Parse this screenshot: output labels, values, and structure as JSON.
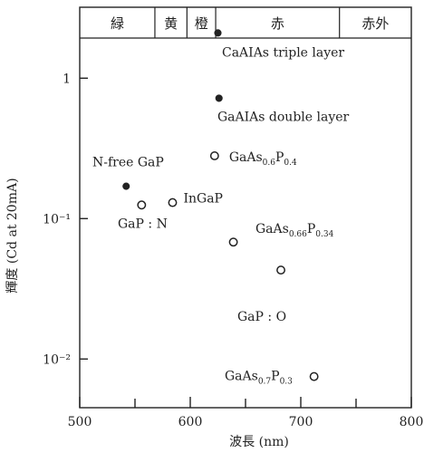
{
  "chart_data": {
    "type": "scatter",
    "title": "",
    "xlabel": "波長 (nm)",
    "ylabel": "輝度 (Cd at 20mA)",
    "x_scale": "linear",
    "y_scale": "log",
    "xlim": [
      500,
      800
    ],
    "ylim": [
      0.0045,
      3.2
    ],
    "x_ticks": [
      {
        "value": 500,
        "label": "500"
      },
      {
        "value": 600,
        "label": "600"
      },
      {
        "value": 700,
        "label": "700"
      },
      {
        "value": 800,
        "label": "800"
      }
    ],
    "y_ticks": [
      {
        "value": 1,
        "label": "1"
      },
      {
        "value": 0.1,
        "label": "10⁻¹"
      },
      {
        "value": 0.01,
        "label": "10⁻²"
      }
    ],
    "color_bands": [
      {
        "label": "緑",
        "x_start": 500,
        "x_end": 568
      },
      {
        "label": "黄",
        "x_start": 568,
        "x_end": 597
      },
      {
        "label": "橙",
        "x_start": 597,
        "x_end": 623
      },
      {
        "label": "赤",
        "x_start": 623,
        "x_end": 735
      },
      {
        "label": "赤外",
        "x_start": 735,
        "x_end": 800
      }
    ],
    "points": [
      {
        "x": 625,
        "y": 2.1,
        "marker": "filled",
        "label": "CaAIAs triple layer"
      },
      {
        "x": 626,
        "y": 0.72,
        "marker": "filled",
        "label": "GaAIAs double layer"
      },
      {
        "x": 542,
        "y": 0.17,
        "marker": "filled",
        "label": "N-free GaP"
      },
      {
        "x": 622,
        "y": 0.28,
        "marker": "open",
        "label": "GaAs",
        "sub1": "0.6",
        "mid": "P",
        "sub2": "0.4"
      },
      {
        "x": 556,
        "y": 0.125,
        "marker": "open",
        "label": "GaP : N"
      },
      {
        "x": 584,
        "y": 0.13,
        "marker": "open",
        "label": "InGaP"
      },
      {
        "x": 639,
        "y": 0.068,
        "marker": "open",
        "label": "GaAs",
        "sub1": "0.66",
        "mid": "P",
        "sub2": "0.34"
      },
      {
        "x": 682,
        "y": 0.043,
        "marker": "open",
        "label": "GaP : O"
      },
      {
        "x": 712,
        "y": 0.0075,
        "marker": "open",
        "label": "GaAs",
        "sub1": "0.7",
        "mid": "P",
        "sub2": "0.3"
      }
    ],
    "grid": false,
    "legend": "none"
  }
}
